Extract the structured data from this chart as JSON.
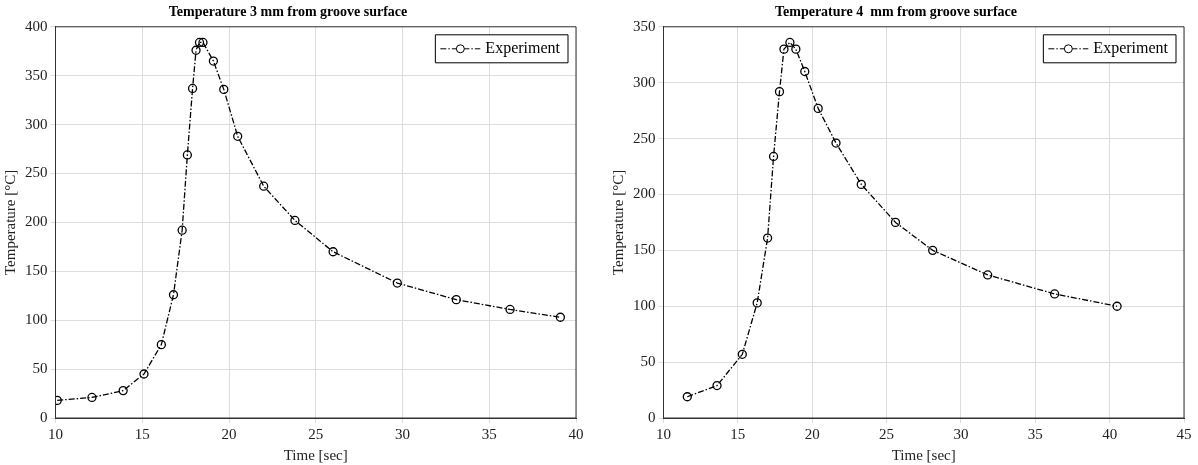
{
  "chart_data": [
    {
      "type": "line",
      "title": "Temperature 3 mm from groove surface",
      "xlabel": "Time [sec]",
      "ylabel": "Temperature [°C]",
      "series": [
        {
          "name": "Experiment",
          "color": "#000000",
          "x": [
            10.1,
            12.1,
            13.9,
            15.1,
            16.1,
            16.8,
            17.3,
            17.6,
            17.9,
            18.1,
            18.3,
            18.5,
            19.1,
            19.7,
            20.5,
            22.0,
            23.8,
            26.0,
            29.7,
            33.1,
            36.2,
            39.1
          ],
          "values": [
            18,
            21,
            28,
            45,
            75,
            126,
            192,
            269,
            337,
            376,
            384,
            384,
            365,
            336,
            288,
            237,
            202,
            170,
            138,
            121,
            111,
            103
          ]
        }
      ],
      "xlim": [
        10,
        40
      ],
      "xticks": [
        10,
        15,
        20,
        25,
        30,
        35,
        40
      ],
      "ylim": [
        0,
        400
      ],
      "yticks": [
        0,
        50,
        100,
        150,
        200,
        250,
        300,
        350,
        400
      ],
      "grid": true,
      "legend": "top right",
      "marker": "circle",
      "line_style": "dashed"
    },
    {
      "type": "line",
      "title": "Temperature 4  mm from groove surface",
      "xlabel": "Time [sec]",
      "ylabel": "Temperature [°C]",
      "series": [
        {
          "name": "Experiment",
          "color": "#000000",
          "x": [
            11.6,
            13.6,
            15.3,
            16.3,
            17.0,
            17.4,
            17.8,
            18.1,
            18.5,
            18.9,
            19.5,
            20.4,
            21.6,
            23.3,
            25.6,
            28.1,
            31.8,
            36.3,
            40.5
          ],
          "values": [
            19,
            29,
            57,
            103,
            161,
            234,
            292,
            330,
            336,
            330,
            310,
            277,
            246,
            209,
            175,
            150,
            128,
            111,
            100
          ]
        }
      ],
      "xlim": [
        10,
        45
      ],
      "xticks": [
        10,
        15,
        20,
        25,
        30,
        35,
        40,
        45
      ],
      "ylim": [
        0,
        350
      ],
      "yticks": [
        0,
        50,
        100,
        150,
        200,
        250,
        300,
        350
      ],
      "grid": true,
      "legend": "top right",
      "marker": "circle",
      "line_style": "dashed"
    }
  ]
}
